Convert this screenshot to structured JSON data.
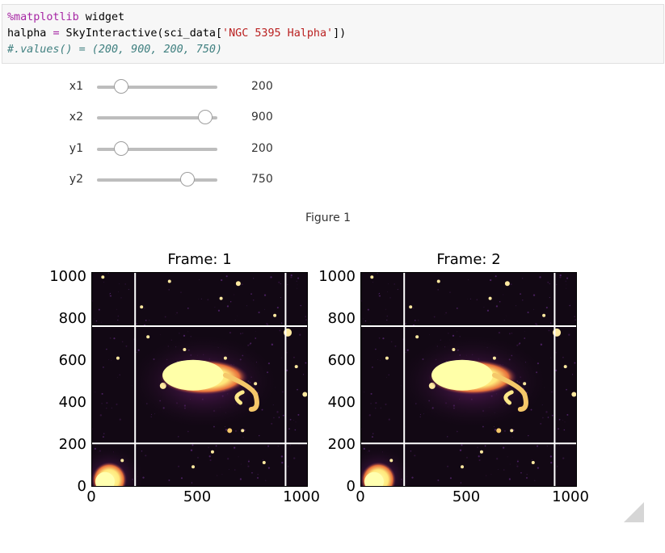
{
  "code_cell": {
    "line1_magic": "%matplotlib",
    "line1_rest": " widget",
    "line2_var": "halpha ",
    "line2_op": "=",
    "line2_call": " SkyInteractive(sci_data[",
    "line2_str": "'NGC 5395 Halpha'",
    "line2_end": "])",
    "line3_comment": "#.values() = (200, 900, 200, 750)"
  },
  "sliders": [
    {
      "label": "x1",
      "value": 200,
      "value_text": "200",
      "min": 0,
      "max": 1000
    },
    {
      "label": "x2",
      "value": 900,
      "value_text": "900",
      "min": 0,
      "max": 1000
    },
    {
      "label": "y1",
      "value": 200,
      "value_text": "200",
      "min": 0,
      "max": 1000
    },
    {
      "label": "y2",
      "value": 750,
      "value_text": "750",
      "min": 0,
      "max": 1000
    }
  ],
  "figure": {
    "label": "Figure 1",
    "frames": [
      {
        "title": "Frame: 1"
      },
      {
        "title": "Frame: 2"
      }
    ],
    "y_ticks": [
      "1000",
      "800",
      "600",
      "400",
      "200",
      "0"
    ],
    "x_ticks": [
      "0",
      "500",
      "1000"
    ],
    "x_range": [
      0,
      1000
    ],
    "y_range": [
      0,
      1000
    ],
    "lines": {
      "x1": 200,
      "x2": 900,
      "y1": 200,
      "y2": 750
    },
    "colors": {
      "background": "#120814",
      "galaxy_core": "#ffffa8",
      "galaxy_edge": "#f5a04a",
      "line": "#ffffff"
    }
  }
}
